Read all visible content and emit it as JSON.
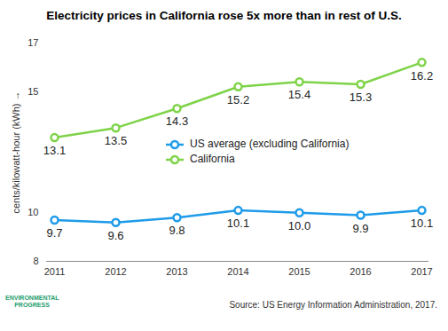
{
  "chart_data": {
    "type": "line",
    "title": "Electricity prices in California rose 5x more than in rest of U.S.",
    "y_label": "cents/kilowatt-hour (kWh)",
    "caption": "Source: US Energy Information Administration, 2017.",
    "annotations": [
      "ENVIRONMENTAL PROGRESS"
    ],
    "x": [
      "2011",
      "2012",
      "2013",
      "2014",
      "2015",
      "2016",
      "2017"
    ],
    "series": [
      {
        "name": "US average (excluding California)",
        "color": "#1e9be9",
        "marker": "circle",
        "values": [
          9.7,
          9.6,
          9.8,
          10.1,
          10.0,
          9.9,
          10.1
        ],
        "value_labels": [
          "9.7",
          "9.6",
          "9.8",
          "10.1",
          "10.0",
          "9.9",
          "10.1"
        ]
      },
      {
        "name": "California",
        "color": "#7ed348",
        "marker": "circle",
        "values": [
          13.1,
          13.5,
          14.3,
          15.2,
          15.4,
          15.3,
          16.2
        ]
      }
    ],
    "ylim": [
      8,
      17
    ],
    "yticks": [
      8,
      10,
      15,
      17
    ],
    "grid": false,
    "legend": "center",
    "data_labels": true
  }
}
